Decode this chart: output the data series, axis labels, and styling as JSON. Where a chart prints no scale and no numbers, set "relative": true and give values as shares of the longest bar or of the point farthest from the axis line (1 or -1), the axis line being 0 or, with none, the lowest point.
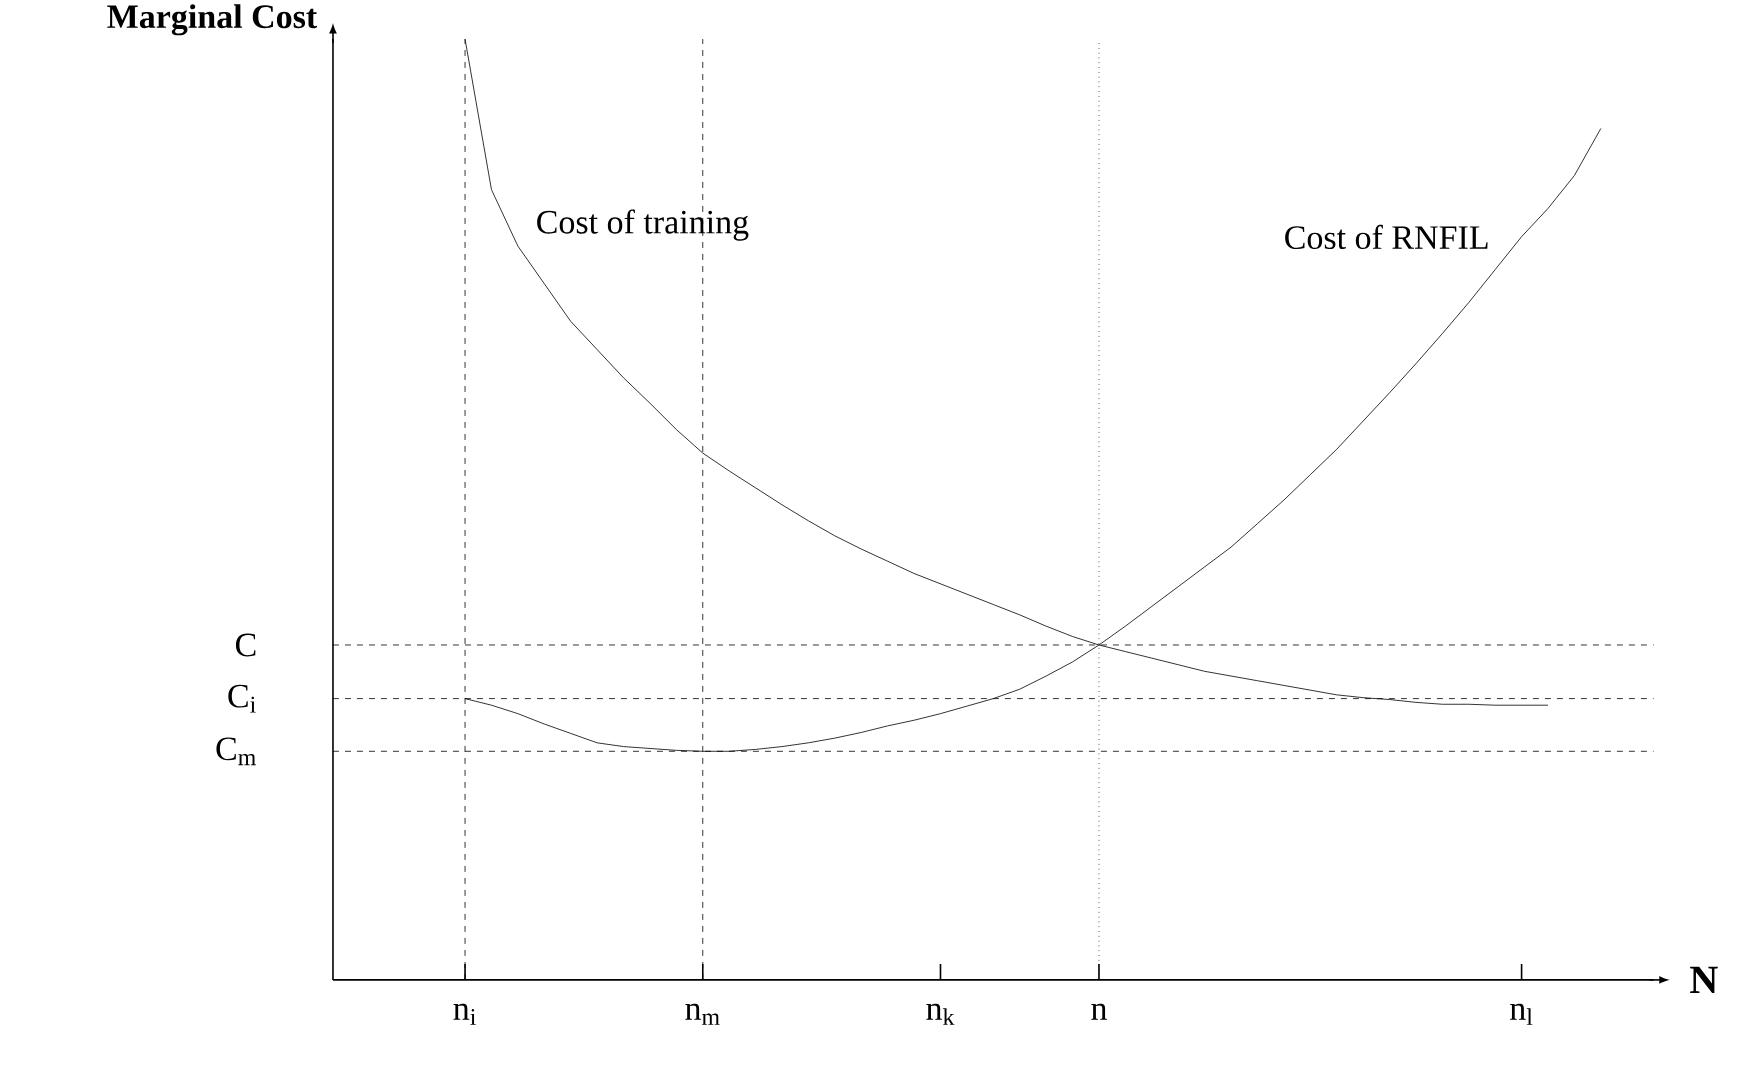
{
  "chart_data": {
    "type": "line",
    "relative": true,
    "ylabel": "Marginal Cost",
    "xlabel": "N",
    "categories": [
      null,
      null,
      null,
      null,
      null,
      "n$_{i}$",
      null,
      null,
      null,
      null,
      null,
      null,
      null,
      null,
      "n$_{m}$",
      null,
      null,
      null,
      null,
      null,
      null,
      null,
      null,
      "n$_{k}$",
      null,
      null,
      null,
      null,
      null,
      "n",
      null,
      null,
      null,
      null,
      null,
      null,
      null,
      null,
      null,
      null,
      null,
      null,
      null,
      null,
      null,
      "n$_{l}$",
      null,
      null,
      null,
      null,
      null
    ],
    "series": [
      {
        "name": "Cost of training",
        "color": "#000000",
        "values": [
          null,
          null,
          null,
          null,
          null,
          1.0,
          0.84,
          0.78,
          0.74,
          0.7,
          0.67,
          0.64,
          0.613,
          0.585,
          0.56,
          0.541,
          0.523,
          0.505,
          0.488,
          0.472,
          0.458,
          0.445,
          0.432,
          0.421,
          0.41,
          0.399,
          0.388,
          0.376,
          0.365,
          0.356,
          0.349,
          0.342,
          0.335,
          0.328,
          0.323,
          0.318,
          0.313,
          0.308,
          0.303,
          0.3,
          0.298,
          0.295,
          0.293,
          0.293,
          0.292,
          0.292,
          0.292,
          null,
          null,
          null,
          null
        ]
      },
      {
        "name": "Cost of RNFIL",
        "color": "#000000",
        "values": [
          null,
          null,
          null,
          null,
          null,
          0.299,
          0.292,
          0.283,
          0.272,
          0.262,
          0.252,
          0.248,
          0.246,
          0.244,
          0.243,
          0.243,
          0.245,
          0.248,
          0.252,
          0.257,
          0.263,
          0.27,
          0.276,
          0.283,
          0.291,
          0.299,
          0.309,
          0.323,
          0.338,
          0.356,
          0.376,
          0.397,
          0.418,
          0.439,
          0.46,
          0.485,
          0.51,
          0.537,
          0.564,
          0.594,
          0.624,
          0.655,
          0.687,
          0.72,
          0.755,
          0.79,
          0.82,
          0.855,
          0.905,
          null,
          null
        ]
      }
    ],
    "ref_lines": [
      {
        "axis": "y",
        "value": 0.356,
        "label": "C",
        "line_style": "dashed"
      },
      {
        "axis": "y",
        "value": 0.299,
        "label": "C$_{i}$",
        "line_style": "dashed"
      },
      {
        "axis": "y",
        "value": 0.243,
        "label": "C$_{m}$",
        "line_style": "dashed"
      },
      {
        "axis": "x",
        "value": "n$_{i}$",
        "line_style": "dashed"
      },
      {
        "axis": "x",
        "value": "n$_{m}$",
        "line_style": "dashed"
      },
      {
        "axis": "x",
        "value": "n",
        "line_style": "dotted"
      }
    ],
    "line_style": "solid",
    "marker": "none",
    "grid": false
  }
}
